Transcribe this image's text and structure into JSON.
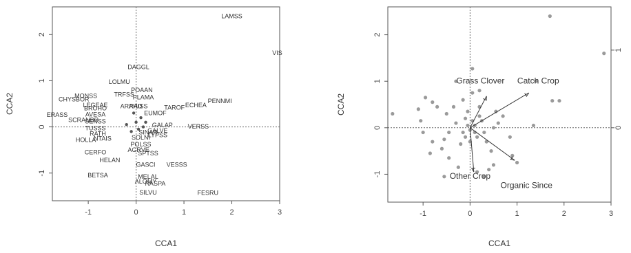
{
  "chart_data": [
    {
      "type": "scatter",
      "xlabel": "CCA1",
      "ylabel": "CCA2",
      "xlim": [
        -1.75,
        3.0
      ],
      "ylim": [
        -1.6,
        2.6
      ],
      "xticks": [
        "-1",
        "0",
        "1",
        "2",
        "3"
      ],
      "xticks_values": [
        -1,
        0,
        1,
        2,
        3
      ],
      "yticks": [
        "-1",
        "0",
        "1",
        "2"
      ],
      "yticks_values": [
        -1,
        0,
        1,
        2
      ],
      "right_ticks": [],
      "right_ticks_values": [],
      "reference_lines": {
        "x": 0,
        "y": 0
      },
      "points": [
        {
          "label": "LAMSS",
          "x": 2.0,
          "y": 2.4
        },
        {
          "label": "VIS",
          "x": 2.95,
          "y": 1.6
        },
        {
          "label": "DAGGL",
          "x": 0.05,
          "y": 1.3
        },
        {
          "label": "LOLMU",
          "x": -0.35,
          "y": 0.98
        },
        {
          "label": "TRFSS",
          "x": -0.25,
          "y": 0.7
        },
        {
          "label": "POAAN",
          "x": 0.12,
          "y": 0.8
        },
        {
          "label": "PLAMA",
          "x": 0.15,
          "y": 0.64
        },
        {
          "label": "MONSS",
          "x": -1.05,
          "y": 0.67
        },
        {
          "label": "CHYSBOR",
          "x": -1.3,
          "y": 0.6
        },
        {
          "label": "LEGEAE",
          "x": -0.85,
          "y": 0.47
        },
        {
          "label": "BROHO",
          "x": -0.85,
          "y": 0.4
        },
        {
          "label": "ARAHO",
          "x": -0.1,
          "y": 0.45
        },
        {
          "label": "RAISS",
          "x": 0.05,
          "y": 0.45
        },
        {
          "label": "TAROF",
          "x": 0.8,
          "y": 0.42
        },
        {
          "label": "ECHEA",
          "x": 1.25,
          "y": 0.47
        },
        {
          "label": "PENNMI",
          "x": 1.75,
          "y": 0.56
        },
        {
          "label": "EUMOF",
          "x": 0.4,
          "y": 0.3
        },
        {
          "label": "ERASS",
          "x": -1.65,
          "y": 0.26
        },
        {
          "label": "AVESA",
          "x": -0.85,
          "y": 0.27
        },
        {
          "label": "SCRANBR",
          "x": -1.1,
          "y": 0.15
        },
        {
          "label": "SENSS",
          "x": -0.85,
          "y": 0.12
        },
        {
          "label": "GALAP",
          "x": 0.55,
          "y": 0.04
        },
        {
          "label": "VERSS",
          "x": 1.3,
          "y": 0.01
        },
        {
          "label": "TUSSS",
          "x": -0.85,
          "y": -0.03
        },
        {
          "label": "RATH",
          "x": -0.8,
          "y": -0.15
        },
        {
          "label": "HOLLA",
          "x": -1.05,
          "y": -0.28
        },
        {
          "label": "NTAIS",
          "x": -0.7,
          "y": -0.25
        },
        {
          "label": "SOLNI",
          "x": 0.1,
          "y": -0.23
        },
        {
          "label": "POLSS",
          "x": 0.1,
          "y": -0.38
        },
        {
          "label": "AGRVE",
          "x": 0.05,
          "y": -0.5
        },
        {
          "label": "SINAR",
          "x": 0.25,
          "y": -0.12
        },
        {
          "label": "LYPSS",
          "x": 0.45,
          "y": -0.18
        },
        {
          "label": "GALVE",
          "x": 0.45,
          "y": -0.08
        },
        {
          "label": "CERFO",
          "x": -0.85,
          "y": -0.55
        },
        {
          "label": "SPTSS",
          "x": 0.25,
          "y": -0.57
        },
        {
          "label": "HELAN",
          "x": -0.55,
          "y": -0.72
        },
        {
          "label": "GASCI",
          "x": 0.2,
          "y": -0.82
        },
        {
          "label": "VESSS",
          "x": 0.85,
          "y": -0.82
        },
        {
          "label": "BETSA",
          "x": -0.8,
          "y": -1.05
        },
        {
          "label": "MELAL",
          "x": 0.25,
          "y": -1.08
        },
        {
          "label": "ALOMY",
          "x": 0.2,
          "y": -1.18
        },
        {
          "label": "RASPA",
          "x": 0.4,
          "y": -1.23
        },
        {
          "label": "SILVU",
          "x": 0.25,
          "y": -1.42
        },
        {
          "label": "FESRU",
          "x": 1.5,
          "y": -1.43
        },
        {
          "label": "",
          "x": -0.05,
          "y": 0.3
        },
        {
          "label": "",
          "x": 0.1,
          "y": 0.2
        },
        {
          "label": "",
          "x": 0.0,
          "y": 0.1
        },
        {
          "label": "",
          "x": 0.15,
          "y": 0.0
        },
        {
          "label": "",
          "x": -0.1,
          "y": -0.1
        },
        {
          "label": "",
          "x": 0.05,
          "y": -0.05
        },
        {
          "label": "",
          "x": 0.2,
          "y": 0.1
        },
        {
          "label": "",
          "x": -0.2,
          "y": 0.05
        }
      ]
    },
    {
      "type": "scatter",
      "xlabel": "CCA1",
      "ylabel": "CCA2",
      "xlim": [
        -1.75,
        3.0
      ],
      "ylim": [
        -1.6,
        2.6
      ],
      "xticks": [
        "-1",
        "0",
        "1",
        "2",
        "3"
      ],
      "xticks_values": [
        -1,
        0,
        1,
        2,
        3
      ],
      "yticks": [
        "-1",
        "0",
        "1",
        "2"
      ],
      "yticks_values": [
        -1,
        0,
        1,
        2
      ],
      "right_ticks": [
        "0",
        "1"
      ],
      "right_ticks_values": [
        0,
        1.67
      ],
      "reference_lines": {
        "x": 0,
        "y": 0
      },
      "points": [
        {
          "x": 1.7,
          "y": 2.4
        },
        {
          "x": 2.85,
          "y": 1.6
        },
        {
          "x": 1.4,
          "y": 1.0
        },
        {
          "x": 0.05,
          "y": 1.27
        },
        {
          "x": -0.3,
          "y": 1.0
        },
        {
          "x": 0.2,
          "y": 0.8
        },
        {
          "x": 1.75,
          "y": 0.58
        },
        {
          "x": 1.9,
          "y": 0.58
        },
        {
          "x": 0.2,
          "y": 0.45
        },
        {
          "x": -1.65,
          "y": 0.3
        },
        {
          "x": -1.1,
          "y": 0.4
        },
        {
          "x": -1.05,
          "y": 0.15
        },
        {
          "x": -0.95,
          "y": 0.65
        },
        {
          "x": -0.8,
          "y": 0.55
        },
        {
          "x": -0.7,
          "y": 0.45
        },
        {
          "x": -0.5,
          "y": 0.3
        },
        {
          "x": -0.45,
          "y": -0.1
        },
        {
          "x": -0.55,
          "y": -0.25
        },
        {
          "x": -0.8,
          "y": -0.3
        },
        {
          "x": -0.6,
          "y": -0.45
        },
        {
          "x": -0.85,
          "y": -0.55
        },
        {
          "x": -0.45,
          "y": -0.65
        },
        {
          "x": -1.0,
          "y": -0.1
        },
        {
          "x": -0.3,
          "y": 0.1
        },
        {
          "x": -0.2,
          "y": -0.35
        },
        {
          "x": -0.1,
          "y": 0.2
        },
        {
          "x": 0.0,
          "y": -0.05
        },
        {
          "x": 0.1,
          "y": 0.05
        },
        {
          "x": 0.15,
          "y": -0.2
        },
        {
          "x": 0.25,
          "y": 0.15
        },
        {
          "x": -0.05,
          "y": 0.35
        },
        {
          "x": 0.3,
          "y": -0.1
        },
        {
          "x": 0.35,
          "y": -0.3
        },
        {
          "x": 0.45,
          "y": -0.5
        },
        {
          "x": 0.5,
          "y": 0.0
        },
        {
          "x": 0.6,
          "y": 0.1
        },
        {
          "x": 0.9,
          "y": -0.6
        },
        {
          "x": 1.0,
          "y": -0.75
        },
        {
          "x": 0.5,
          "y": -0.8
        },
        {
          "x": 0.4,
          "y": -0.9
        },
        {
          "x": 0.3,
          "y": -1.05
        },
        {
          "x": 0.15,
          "y": -0.95
        },
        {
          "x": 1.35,
          "y": 0.05
        },
        {
          "x": -0.55,
          "y": -1.05
        },
        {
          "x": -0.25,
          "y": -0.85
        },
        {
          "x": 0.7,
          "y": 0.25
        },
        {
          "x": -0.15,
          "y": 0.6
        },
        {
          "x": 0.05,
          "y": 0.75
        },
        {
          "x": 0.85,
          "y": -0.2
        },
        {
          "x": 0.55,
          "y": 0.35
        },
        {
          "x": -0.35,
          "y": 0.45
        },
        {
          "x": 0.0,
          "y": -0.3
        },
        {
          "x": -0.05,
          "y": 0.05
        },
        {
          "x": 0.1,
          "y": -0.1
        },
        {
          "x": 0.2,
          "y": 0.25
        },
        {
          "x": -0.15,
          "y": -0.1
        },
        {
          "x": 0.05,
          "y": 0.15
        },
        {
          "x": -0.1,
          "y": -0.2
        }
      ],
      "arrows": [
        {
          "label": "Grass Clover",
          "x": 0.35,
          "y": 0.68
        },
        {
          "label": "Catch Crop",
          "x": 1.25,
          "y": 0.75
        },
        {
          "label": "Other Crop",
          "x": 0.08,
          "y": -0.95
        },
        {
          "label": "Organic Since",
          "x": 0.95,
          "y": -0.7
        }
      ],
      "arrow_label_positions": [
        {
          "x": 0.22,
          "y": 0.95
        },
        {
          "x": 1.45,
          "y": 0.95
        },
        {
          "x": 0.0,
          "y": -1.1
        },
        {
          "x": 1.2,
          "y": -1.3
        }
      ]
    }
  ]
}
